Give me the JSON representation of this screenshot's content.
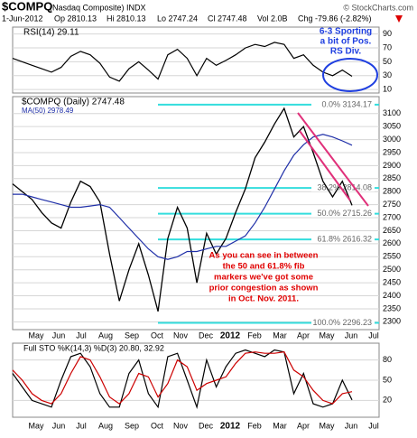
{
  "header": {
    "symbol": "$COMPQ",
    "name": "(Nasdaq Composite) INDX",
    "source": "© StockCharts.com",
    "date": "1-Jun-2012",
    "open": "Op 2810.13",
    "high": "Hi 2810.13",
    "low": "Lo 2747.24",
    "close": "Cl 2747.48",
    "volume": "Vol 2.0B",
    "change": "Chg -79.86 (-2.82%)"
  },
  "chart_data": [
    {
      "type": "line",
      "ylim": [
        5,
        100
      ],
      "yticks": [
        90,
        70,
        50,
        30,
        10
      ],
      "grid": true,
      "series": [
        {
          "name": "RSI(14) 29.11",
          "color": "#000000",
          "values": [
            55,
            50,
            45,
            40,
            35,
            42,
            58,
            65,
            60,
            48,
            28,
            22,
            40,
            50,
            38,
            25,
            60,
            68,
            55,
            30,
            55,
            45,
            52,
            60,
            70,
            75,
            72,
            78,
            75,
            55,
            60,
            45,
            35,
            30,
            38,
            29.11
          ]
        }
      ],
      "annotation": [
        "6-3 Sporting",
        "a bit of Pos.",
        "RS Div."
      ]
    },
    {
      "type": "line",
      "ylim": [
        2270,
        3165
      ],
      "yticks": [
        3100,
        3050,
        3000,
        2950,
        2900,
        2850,
        2800,
        2750,
        2700,
        2650,
        2600,
        2550,
        2500,
        2450,
        2400,
        2350,
        2300
      ],
      "grid": true,
      "series": [
        {
          "name": "$COMPQ (Daily) 2747.48",
          "color": "#000000",
          "values": [
            2830,
            2800,
            2770,
            2720,
            2680,
            2660,
            2760,
            2840,
            2820,
            2760,
            2560,
            2380,
            2500,
            2600,
            2480,
            2340,
            2620,
            2740,
            2660,
            2450,
            2640,
            2560,
            2620,
            2720,
            2810,
            2930,
            2990,
            3060,
            3120,
            3010,
            3050,
            2950,
            2840,
            2780,
            2840,
            2747.48
          ]
        },
        {
          "name": "MA(50) 2978.49",
          "color": "#1f2fa8",
          "values": [
            2790,
            2790,
            2780,
            2770,
            2760,
            2750,
            2740,
            2740,
            2745,
            2750,
            2740,
            2700,
            2660,
            2620,
            2580,
            2550,
            2540,
            2550,
            2570,
            2570,
            2580,
            2590,
            2590,
            2610,
            2630,
            2680,
            2740,
            2810,
            2880,
            2940,
            2980,
            3010,
            3020,
            3010,
            2995,
            2978.49
          ]
        }
      ],
      "fib_levels": [
        {
          "value": 3134.17,
          "label": "0.0% 3134.17"
        },
        {
          "value": 2814.08,
          "label": "38.2% 2814.08"
        },
        {
          "value": 2715.26,
          "label": "50.0% 2715.26"
        },
        {
          "value": 2616.32,
          "label": "61.8% 2616.32"
        },
        {
          "value": 2296.23,
          "label": "100.0% 2296.23"
        }
      ],
      "annotation": [
        "As you can see in between",
        "the 50 and 61.8% fib",
        "markers we've got some",
        "prior congestion as shown",
        "in Oct. Nov. 2011."
      ]
    },
    {
      "type": "line",
      "title": "Full STO %K(14,3) %D(3) 20.80, 32.92",
      "ylim": [
        -5,
        105
      ],
      "yticks": [
        80,
        50,
        20
      ],
      "grid": true,
      "series": [
        {
          "color": "#000000",
          "values": [
            60,
            40,
            20,
            15,
            10,
            50,
            85,
            90,
            70,
            30,
            10,
            10,
            60,
            80,
            30,
            10,
            85,
            90,
            50,
            10,
            80,
            40,
            70,
            90,
            95,
            90,
            85,
            95,
            92,
            30,
            60,
            15,
            10,
            15,
            50,
            20.8
          ]
        },
        {
          "color": "#cc0000",
          "values": [
            65,
            50,
            30,
            20,
            15,
            30,
            60,
            85,
            80,
            55,
            25,
            15,
            30,
            60,
            55,
            25,
            45,
            80,
            70,
            35,
            45,
            50,
            55,
            75,
            90,
            92,
            90,
            90,
            92,
            65,
            55,
            35,
            20,
            15,
            30,
            32.92
          ]
        }
      ]
    }
  ],
  "x_labels": [
    "May",
    "Jun",
    "Jul",
    "Aug",
    "Sep",
    "Oct",
    "Nov",
    "Dec",
    "2012",
    "Feb",
    "Mar",
    "Apr",
    "May",
    "Jun",
    "Jul"
  ]
}
